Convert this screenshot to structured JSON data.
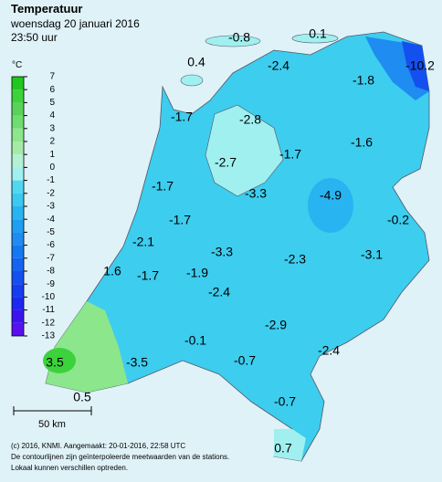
{
  "header": {
    "title": "Temperatuur",
    "subtitle": "woensdag 20 januari 2016",
    "time": "23:50 uur"
  },
  "legend": {
    "unit": "°C",
    "ticks": [
      7,
      6,
      5,
      4,
      3,
      2,
      1,
      0,
      -1,
      -2,
      -3,
      -4,
      -5,
      -6,
      -7,
      -8,
      -9,
      -10,
      -11,
      -12,
      -13
    ],
    "colors": [
      "#1ec81e",
      "#3cd23c",
      "#5ad25a",
      "#6fdc6f",
      "#8ce68c",
      "#a5eba5",
      "#b4f0d2",
      "#a0f0f0",
      "#50d8f0",
      "#3cc8f0",
      "#28b4f0",
      "#1e9ef0",
      "#1e8cf0",
      "#1478f0",
      "#1464f0",
      "#1450f0",
      "#143cf0",
      "#1e28f0",
      "#3c14f0",
      "#5a0ff0"
    ]
  },
  "temperatures": [
    -0.8,
    0.1,
    0.4,
    -2.4,
    -10.2,
    -1.8,
    -1.7,
    -2.8,
    -1.7,
    -1.6,
    -2.7,
    -1.7,
    -3.3,
    -4.9,
    -0.2,
    -1.7,
    -2.1,
    -3.3,
    -2.3,
    -3.1,
    1.6,
    -1.7,
    -1.9,
    -2.4,
    -2.9,
    -0.1,
    -3.5,
    3.5,
    -0.7,
    -2.4,
    0.5,
    -0.7,
    0.7
  ],
  "scale": "50 km",
  "footer": [
    "(c) 2016, KNMI. Aangemaakt: 20-01-2016, 22:58 UTC",
    "De contourlijnen zijn geïnterpoleerde meetwaarden van de stations.",
    "Lokaal kunnen verschillen optreden."
  ]
}
